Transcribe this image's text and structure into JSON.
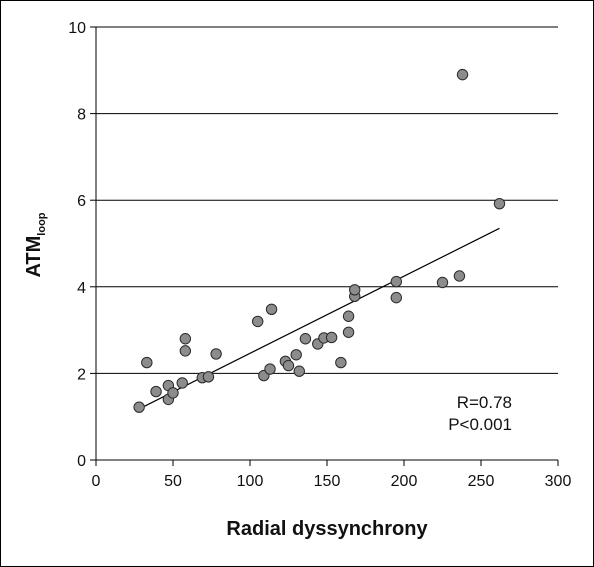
{
  "chart_data": {
    "type": "scatter",
    "xlabel": "Radial dyssynchrony",
    "ylabel": {
      "main": "ATM",
      "subscript": "loop"
    },
    "xlim": [
      0,
      300
    ],
    "ylim": [
      0,
      10
    ],
    "x_ticks": [
      "0",
      "50",
      "100",
      "150",
      "200",
      "250",
      "300"
    ],
    "y_ticks": [
      "0",
      "2",
      "4",
      "6",
      "8",
      "10"
    ],
    "grid": "horizontal",
    "points": [
      {
        "x": 28,
        "y": 1.22
      },
      {
        "x": 33,
        "y": 2.25
      },
      {
        "x": 39,
        "y": 1.58
      },
      {
        "x": 47,
        "y": 1.4
      },
      {
        "x": 47,
        "y": 1.72
      },
      {
        "x": 50,
        "y": 1.55
      },
      {
        "x": 56,
        "y": 1.78
      },
      {
        "x": 58,
        "y": 2.8
      },
      {
        "x": 58,
        "y": 2.52
      },
      {
        "x": 69,
        "y": 1.9
      },
      {
        "x": 73,
        "y": 1.92
      },
      {
        "x": 78,
        "y": 2.45
      },
      {
        "x": 105,
        "y": 3.2
      },
      {
        "x": 109,
        "y": 1.95
      },
      {
        "x": 113,
        "y": 2.1
      },
      {
        "x": 114,
        "y": 3.48
      },
      {
        "x": 123,
        "y": 2.28
      },
      {
        "x": 125,
        "y": 2.18
      },
      {
        "x": 130,
        "y": 2.43
      },
      {
        "x": 132,
        "y": 2.05
      },
      {
        "x": 136,
        "y": 2.8
      },
      {
        "x": 144,
        "y": 2.68
      },
      {
        "x": 148,
        "y": 2.82
      },
      {
        "x": 153,
        "y": 2.83
      },
      {
        "x": 159,
        "y": 2.25
      },
      {
        "x": 164,
        "y": 2.95
      },
      {
        "x": 164,
        "y": 3.32
      },
      {
        "x": 168,
        "y": 3.78
      },
      {
        "x": 168,
        "y": 3.93
      },
      {
        "x": 195,
        "y": 4.12
      },
      {
        "x": 195,
        "y": 3.75
      },
      {
        "x": 225,
        "y": 4.1
      },
      {
        "x": 236,
        "y": 4.25
      },
      {
        "x": 238,
        "y": 8.9
      },
      {
        "x": 262,
        "y": 5.92
      }
    ],
    "trendline": {
      "x": [
        28,
        262
      ],
      "y": [
        1.18,
        5.35
      ]
    },
    "annotations": [
      "R=0.78",
      "P<0.001"
    ],
    "colors": {
      "marker_fill": "#8c8c8c",
      "marker_stroke": "#2a2a2a",
      "line": "#000000"
    }
  }
}
